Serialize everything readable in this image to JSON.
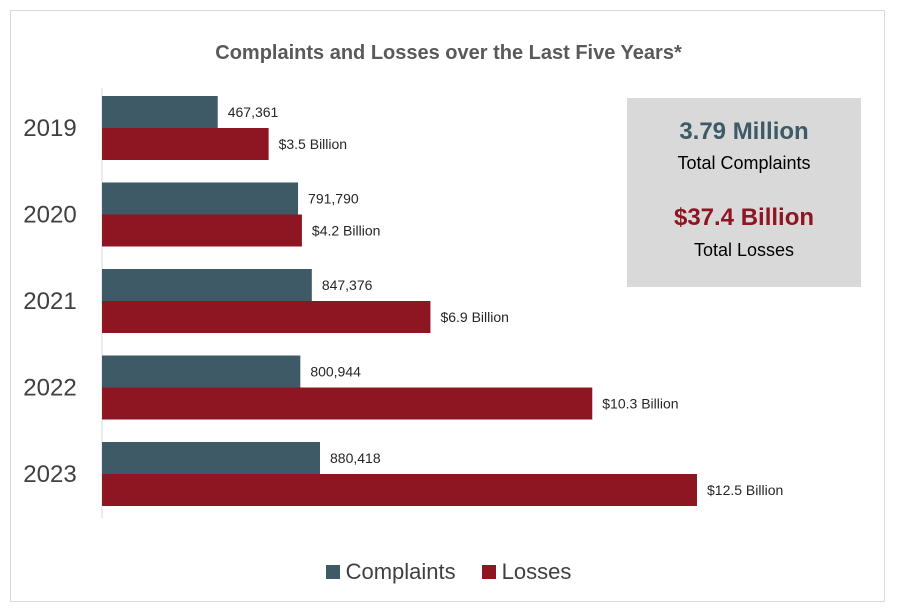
{
  "chart_data": {
    "type": "bar",
    "orientation": "horizontal",
    "title": "Complaints and Losses over the Last Five Years*",
    "categories": [
      "2019",
      "2020",
      "2021",
      "2022",
      "2023"
    ],
    "series": [
      {
        "name": "Complaints",
        "color": "#3d5a66",
        "values": [
          467361,
          791790,
          847376,
          800944,
          880418
        ],
        "labels": [
          "467,361",
          "791,790",
          "847,376",
          "800,944",
          "880,418"
        ]
      },
      {
        "name": "Losses",
        "color": "#8e1522",
        "values": [
          3.5,
          4.2,
          6.9,
          10.3,
          12.5
        ],
        "labels": [
          "$3.5 Billion",
          "$4.2 Billion",
          "$6.9 Billion",
          "$10.3 Billion",
          "$12.5 Billion"
        ]
      }
    ],
    "legend_position": "bottom",
    "grid": false
  },
  "summary": {
    "complaints_value": "3.79 Million",
    "complaints_label": "Total Complaints",
    "losses_value": "$37.4 Billion",
    "losses_label": "Total Losses",
    "complaints_color": "#3d5a66",
    "losses_color": "#8e1522",
    "box_color": "#d9d9d9"
  }
}
